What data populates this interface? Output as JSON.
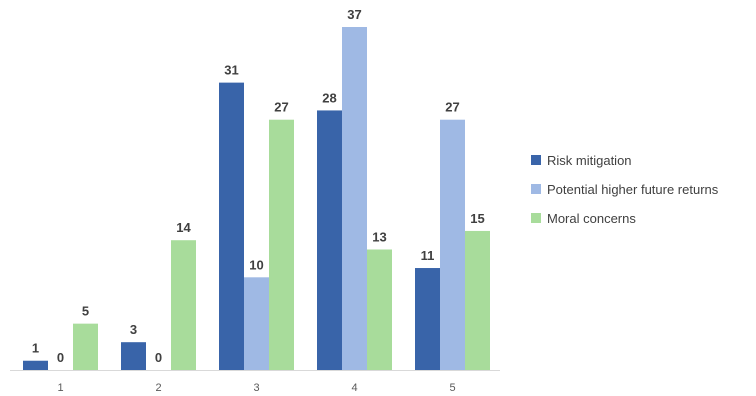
{
  "chart_data": {
    "type": "bar",
    "categories": [
      "1",
      "2",
      "3",
      "4",
      "5"
    ],
    "series": [
      {
        "name": "Risk mitigation",
        "values": [
          1,
          3,
          31,
          28,
          11
        ],
        "color": "#3964a9"
      },
      {
        "name": "Potential higher future returns",
        "values": [
          0,
          0,
          10,
          37,
          27
        ],
        "color": "#9fb9e4"
      },
      {
        "name": "Moral concerns",
        "values": [
          5,
          14,
          27,
          13,
          15
        ],
        "color": "#a8dc9b"
      }
    ],
    "title": "",
    "xlabel": "",
    "ylabel": "",
    "ylim": [
      0,
      37
    ],
    "grid": false,
    "legend": "right",
    "axis_color": "#d9d9d9"
  }
}
